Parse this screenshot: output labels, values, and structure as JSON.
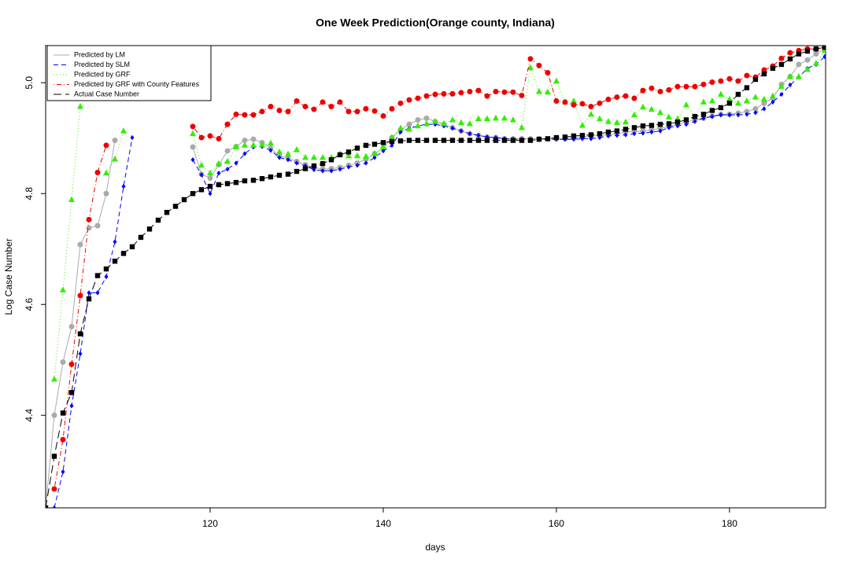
{
  "chart_data": {
    "type": "line",
    "title": "One Week Prediction(Orange county, Indiana)",
    "xlabel": "days",
    "ylabel": "Log Case Number",
    "xlim": [
      101,
      191.1
    ],
    "ylim": [
      4.233,
      5.067
    ],
    "xticks": [
      120,
      140,
      160,
      180
    ],
    "yticks": [
      4.4,
      4.6,
      4.8,
      {
        "value": 5,
        "label": "5.0"
      }
    ],
    "legend": "top-left",
    "x": [
      101,
      102,
      103,
      104,
      105,
      106,
      107,
      108,
      109,
      110,
      111,
      112,
      113,
      114,
      115,
      116,
      117,
      118,
      119,
      120,
      121,
      122,
      123,
      124,
      125,
      126,
      127,
      128,
      129,
      130,
      131,
      132,
      133,
      134,
      135,
      136,
      137,
      138,
      139,
      140,
      141,
      142,
      143,
      144,
      145,
      146,
      147,
      148,
      149,
      150,
      151,
      152,
      153,
      154,
      155,
      156,
      157,
      158,
      159,
      160,
      161,
      162,
      163,
      164,
      165,
      166,
      167,
      168,
      169,
      170,
      171,
      172,
      173,
      174,
      175,
      176,
      177,
      178,
      179,
      180,
      181,
      182,
      183,
      184,
      185,
      186,
      187,
      188,
      189,
      190,
      191
    ],
    "series": [
      {
        "name": "Predicted by LM",
        "color": "#aaaaaa",
        "marker": "circle",
        "dash": "solid",
        "values": [
          4.233,
          4.4,
          4.496,
          4.56,
          4.708,
          4.738,
          4.742,
          4.8,
          4.896,
          null,
          null,
          null,
          null,
          null,
          null,
          null,
          null,
          4.884,
          4.835,
          4.828,
          4.852,
          4.877,
          4.885,
          4.896,
          4.898,
          4.892,
          4.882,
          4.868,
          4.864,
          4.858,
          4.852,
          4.847,
          4.844,
          4.845,
          4.847,
          4.851,
          4.855,
          4.862,
          4.872,
          4.882,
          4.901,
          4.915,
          4.925,
          4.933,
          4.936,
          4.93,
          4.925,
          4.919,
          4.913,
          4.908,
          4.905,
          4.902,
          4.901,
          4.899,
          4.899,
          4.899,
          4.899,
          4.899,
          4.899,
          4.899,
          4.899,
          4.901,
          4.902,
          4.904,
          4.905,
          4.906,
          4.908,
          4.911,
          4.912,
          4.913,
          4.915,
          4.918,
          4.921,
          4.925,
          4.929,
          4.933,
          4.936,
          4.94,
          4.943,
          4.943,
          4.945,
          4.948,
          4.953,
          4.963,
          4.972,
          4.997,
          5.011,
          5.033,
          5.041,
          5.052,
          5.061
        ]
      },
      {
        "name": "Predicted by SLM",
        "color": "#0000ff",
        "marker": "diamond",
        "dash": "dashed",
        "values": [
          null,
          4.233,
          4.298,
          4.417,
          4.511,
          4.621,
          4.621,
          4.65,
          4.713,
          4.813,
          4.901,
          null,
          null,
          null,
          null,
          null,
          null,
          4.861,
          4.834,
          4.8,
          4.837,
          4.844,
          4.855,
          4.872,
          4.884,
          4.885,
          4.878,
          4.865,
          4.861,
          4.855,
          4.85,
          4.843,
          4.841,
          4.841,
          4.844,
          4.848,
          4.851,
          4.855,
          4.865,
          4.877,
          4.887,
          4.911,
          4.918,
          4.922,
          4.925,
          4.925,
          4.922,
          4.918,
          4.913,
          4.908,
          4.905,
          4.902,
          4.901,
          4.899,
          4.898,
          4.898,
          4.898,
          4.898,
          4.898,
          4.898,
          4.898,
          4.898,
          4.899,
          4.899,
          4.901,
          4.904,
          4.905,
          4.906,
          4.908,
          4.909,
          4.911,
          4.913,
          4.919,
          4.922,
          4.925,
          4.93,
          4.936,
          4.939,
          4.942,
          4.942,
          4.942,
          4.943,
          4.946,
          4.953,
          4.965,
          4.979,
          4.996,
          5.01,
          5.026,
          5.033,
          5.047
        ]
      },
      {
        "name": "Predicted by GRF",
        "color": "#33ee00",
        "marker": "triangle",
        "dash": "dotted",
        "values": [
          null,
          4.465,
          4.626,
          4.789,
          4.957,
          null,
          null,
          4.837,
          4.862,
          4.913,
          null,
          null,
          null,
          null,
          null,
          null,
          null,
          4.908,
          4.851,
          4.837,
          4.854,
          4.858,
          4.884,
          4.887,
          4.887,
          4.888,
          4.891,
          4.875,
          4.871,
          4.879,
          4.865,
          4.865,
          4.865,
          4.865,
          4.871,
          4.868,
          4.868,
          4.867,
          4.872,
          4.884,
          4.901,
          4.918,
          4.916,
          4.922,
          4.926,
          4.93,
          4.926,
          4.933,
          4.928,
          4.926,
          4.935,
          4.935,
          4.936,
          4.936,
          4.933,
          4.919,
          5.027,
          4.984,
          4.983,
          5.003,
          4.965,
          4.967,
          4.923,
          4.943,
          4.935,
          4.93,
          4.928,
          4.929,
          4.942,
          4.956,
          4.952,
          4.946,
          4.938,
          4.935,
          4.96,
          4.939,
          4.965,
          4.967,
          4.979,
          4.97,
          4.963,
          4.967,
          4.974,
          4.97,
          4.976,
          4.993,
          5.011,
          5.011,
          5.024,
          5.035,
          5.058
        ]
      },
      {
        "name": "Predicted by GRF with County Features",
        "color": "#ee0000",
        "marker": "circle",
        "dash": "dotdash",
        "values": [
          null,
          4.267,
          4.356,
          4.492,
          4.616,
          4.753,
          4.838,
          4.887,
          null,
          null,
          null,
          null,
          null,
          null,
          null,
          null,
          null,
          4.921,
          4.901,
          4.904,
          4.899,
          4.925,
          4.943,
          4.942,
          4.942,
          4.948,
          4.957,
          4.95,
          4.948,
          4.967,
          4.957,
          4.952,
          4.965,
          4.957,
          4.965,
          4.948,
          4.948,
          4.953,
          4.949,
          4.94,
          4.953,
          4.963,
          4.969,
          4.972,
          4.976,
          4.979,
          4.98,
          4.98,
          4.982,
          4.984,
          4.986,
          4.976,
          4.984,
          4.983,
          4.983,
          4.977,
          5.043,
          5.031,
          5.018,
          4.967,
          4.965,
          4.96,
          4.962,
          4.957,
          4.963,
          4.97,
          4.974,
          4.976,
          4.972,
          4.986,
          4.99,
          4.984,
          4.987,
          4.993,
          4.993,
          4.993,
          4.997,
          5.001,
          5.003,
          5.007,
          5.003,
          5.013,
          5.01,
          5.023,
          5.03,
          5.044,
          5.054,
          5.058,
          5.061,
          5.061,
          5.064
        ]
      },
      {
        "name": "Actual Case Number",
        "color": "#000000",
        "marker": "square",
        "dash": "longdash",
        "values": [
          4.233,
          4.326,
          4.404,
          4.441,
          4.547,
          4.61,
          4.652,
          4.664,
          4.678,
          4.692,
          4.704,
          4.721,
          4.736,
          4.752,
          4.766,
          4.777,
          4.789,
          4.8,
          4.807,
          4.813,
          4.816,
          4.818,
          4.82,
          4.823,
          4.824,
          4.827,
          4.83,
          4.833,
          4.835,
          4.84,
          4.845,
          4.85,
          4.854,
          4.861,
          4.87,
          4.875,
          4.882,
          4.887,
          4.889,
          4.892,
          4.894,
          4.895,
          4.896,
          4.896,
          4.896,
          4.896,
          4.896,
          4.896,
          4.896,
          4.896,
          4.896,
          4.896,
          4.896,
          4.896,
          4.896,
          4.896,
          4.896,
          4.898,
          4.899,
          4.901,
          4.902,
          4.904,
          4.905,
          4.906,
          4.908,
          4.911,
          4.913,
          4.916,
          4.919,
          4.922,
          4.923,
          4.925,
          4.926,
          4.929,
          4.933,
          4.939,
          4.943,
          4.95,
          4.955,
          4.963,
          4.979,
          4.991,
          5.006,
          5.016,
          5.026,
          5.033,
          5.043,
          5.052,
          5.057,
          5.061,
          5.064
        ]
      }
    ]
  }
}
